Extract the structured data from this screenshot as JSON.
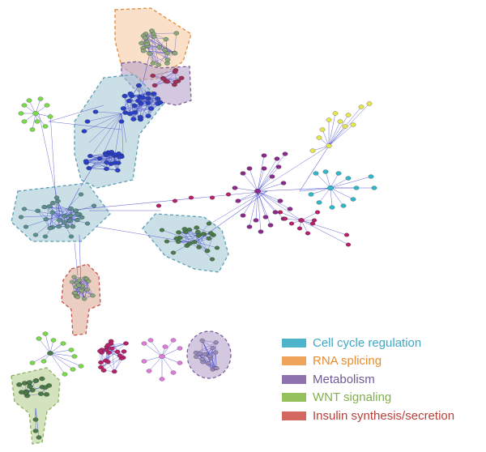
{
  "legend": {
    "items": [
      {
        "key": "cell-cycle",
        "label": "Cell cycle regulation",
        "color": "#4db4cc",
        "text_color": "#3fa7c4"
      },
      {
        "key": "rna-splicing",
        "label": "RNA splicing",
        "color": "#f0a35a",
        "text_color": "#e58c2f"
      },
      {
        "key": "metabolism",
        "label": "Metabolism",
        "color": "#8e72ad",
        "text_color": "#6f5a94"
      },
      {
        "key": "wnt",
        "label": "WNT signaling",
        "color": "#94c15a",
        "text_color": "#7fb04a"
      },
      {
        "key": "insulin",
        "label": "Insulin synthesis/secretion",
        "color": "#d4675f",
        "text_color": "#b8403a"
      }
    ]
  },
  "colors": {
    "edge": "#3b3fc9",
    "hub_teal": "#5a8f8f",
    "hub_blue": "#2a3fc8",
    "hub_purple": "#8a2a8a",
    "hub_magenta": "#b8206a",
    "hub_green": "#4a7a4a",
    "hub_yellow": "#e5e84a",
    "hub_cyan": "#2fb8c8",
    "hub_pink": "#e07ad8",
    "hub_lime": "#7adb4a"
  }
}
